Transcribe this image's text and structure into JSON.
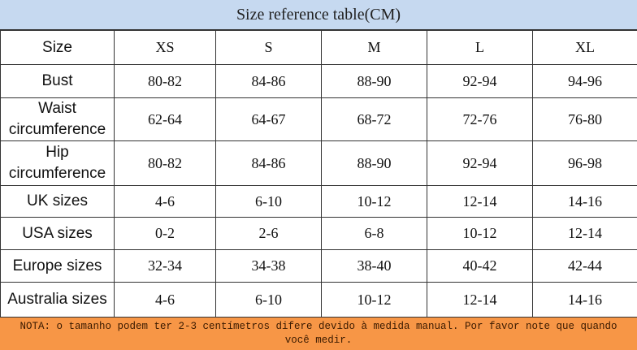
{
  "title": "Size reference table(CM)",
  "table": {
    "header": [
      "Size",
      "XS",
      "S",
      "M",
      "L",
      "XL"
    ],
    "rows": [
      [
        "Bust",
        "80-82",
        "84-86",
        "88-90",
        "92-94",
        "94-96"
      ],
      [
        "Waist circumference",
        "62-64",
        "64-67",
        "68-72",
        "72-76",
        "76-80"
      ],
      [
        "Hip circumference",
        "80-82",
        "84-86",
        "88-90",
        "92-94",
        "96-98"
      ],
      [
        "UK sizes",
        "4-6",
        "6-10",
        "10-12",
        "12-14",
        "14-16"
      ],
      [
        "USA sizes",
        "0-2",
        "2-6",
        "6-8",
        "10-12",
        "12-14"
      ],
      [
        "Europe sizes",
        "32-34",
        "34-38",
        "38-40",
        "40-42",
        "42-44"
      ],
      [
        "Australia sizes",
        "4-6",
        "6-10",
        "10-12",
        "12-14",
        "14-16"
      ]
    ]
  },
  "note": "NOTA: o tamanho podem ter 2-3 centímetros difere devido à medida manual. Por favor note que quando você medir."
}
